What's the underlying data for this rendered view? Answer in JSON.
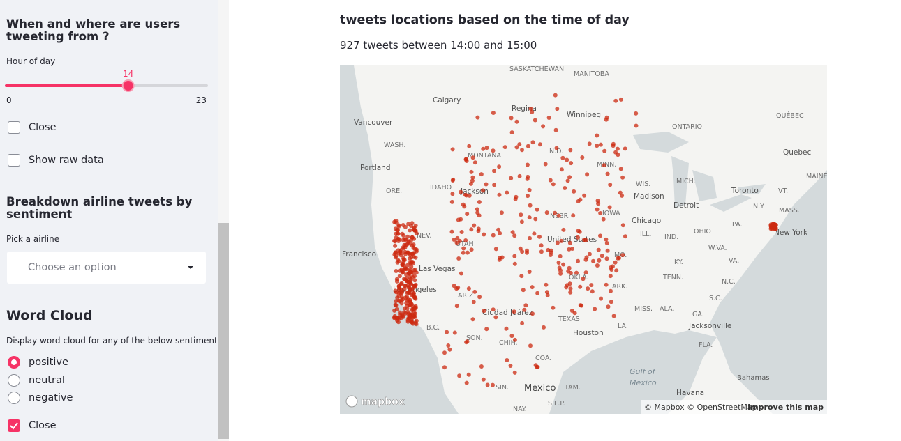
{
  "sidebar": {
    "section1_title": "When and where are users tweeting from ?",
    "slider": {
      "label": "Hour of day",
      "value": 14,
      "min": 0,
      "max": 23
    },
    "checkboxes": [
      {
        "label": "Close",
        "checked": false
      },
      {
        "label": "Show raw data",
        "checked": false
      }
    ],
    "section2_title": "Breakdown airline tweets by sentiment",
    "select": {
      "label": "Pick a airline",
      "placeholder": "Choose an option"
    },
    "section3_title": "Word Cloud",
    "radio": {
      "label": "Display word cloud for any of the below sentiment",
      "options": [
        "positive",
        "neutral",
        "negative"
      ],
      "selected": 0
    },
    "checkbox3": {
      "label": "Close",
      "checked": true
    }
  },
  "main": {
    "title": "tweets locations based on the time of day",
    "subtitle": "927 tweets between 14:00 and 15:00",
    "map": {
      "labels": [
        "SASKATCHEWAN",
        "MANITOBA",
        "Calgary",
        "Regina",
        "Winnipeg",
        "QUÉBEC",
        "Vancouver",
        "ONTARIO",
        "WASH.",
        "MONTANA",
        "N.D.",
        "Quebec",
        "MINN.",
        "Portland",
        "MAINE",
        "MICH.",
        "WIS.",
        "IDAHO",
        "Jackson",
        "ORE.",
        "Toronto",
        "VT.",
        "Madison",
        "N.Y.",
        "MASS.",
        "Detroit",
        "NEBR.",
        "IOWA",
        "Chicago",
        "PA.",
        "OHIO",
        "ILL.",
        "NEV.",
        "IND.",
        "New York",
        "United States",
        "UTAH",
        "W.VA.",
        "Francisco",
        "MO.",
        "KY.",
        "VA.",
        "Las Vegas",
        "TENN.",
        "N.C.",
        "Los Angeles",
        "ARK.",
        "ARIZ",
        "OKLA.",
        "S.C.",
        "MISS.",
        "ALA.",
        "GA.",
        "Ciudad Juárez",
        "TEXAS",
        "LA.",
        "Jacksonville",
        "B.C.",
        "SON.",
        "Houston",
        "CHIH.",
        "FLA.",
        "COA.",
        "Gulf of",
        "Mexico",
        "Bahamas",
        "SIN.",
        "Mexico",
        "TAM.",
        "Havana",
        "S.L.P.",
        "NAY."
      ],
      "logo": "mapbox",
      "attribution": "© Mapbox © OpenStreetMap",
      "improve": "Improve this map"
    }
  }
}
